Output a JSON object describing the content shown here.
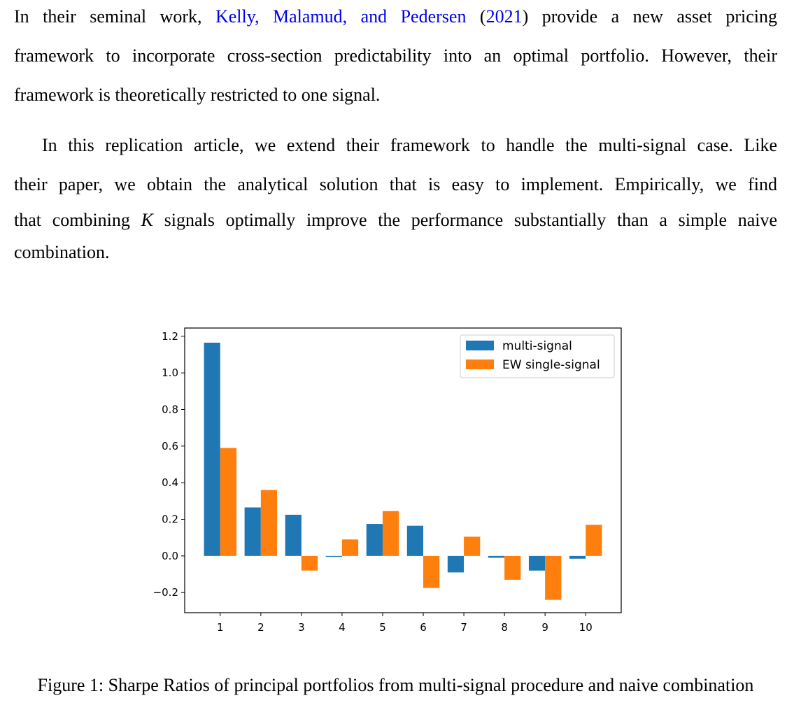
{
  "paragraph1": {
    "line1_pre": "In their seminal work,",
    "line1_cite_authors": "Kelly, Malamud, and Pedersen",
    "line1_cite_open": "(",
    "line1_cite_year": "2021",
    "line1_cite_close": ")",
    "line1_post": "provide a new asset pricing",
    "line2": "framework to incorporate cross-section predictability into an optimal portfolio.  However, their",
    "line3": "framework is theoretically restricted to one signal."
  },
  "paragraph2": {
    "line1": "In this replication article, we extend their framework to handle the multi-signal case.  Like",
    "line2": "their paper, we obtain the analytical solution that is easy to implement.  Empirically, we find",
    "line3_pre": "that combining",
    "line3_var": "K",
    "line3_post": "signals optimally improve the performance substantially than a simple naive",
    "line4": "combination."
  },
  "chart_data": {
    "type": "bar",
    "categories": [
      "1",
      "2",
      "3",
      "4",
      "5",
      "6",
      "7",
      "8",
      "9",
      "10"
    ],
    "series": [
      {
        "name": "multi-signal",
        "color": "#1f77b4",
        "values": [
          1.165,
          0.265,
          0.225,
          -0.005,
          0.175,
          0.165,
          -0.09,
          -0.01,
          -0.08,
          -0.015
        ]
      },
      {
        "name": "EW single-signal",
        "color": "#ff7f0e",
        "values": [
          0.59,
          0.36,
          -0.08,
          0.09,
          0.245,
          -0.175,
          0.105,
          -0.13,
          -0.24,
          0.17
        ]
      }
    ],
    "ylim": [
      -0.31,
      1.245
    ],
    "yticks": [
      -0.2,
      0.0,
      0.2,
      0.4,
      0.6,
      0.8,
      1.0,
      1.2
    ],
    "ytick_labels": [
      "−0.2",
      "0.0",
      "0.2",
      "0.4",
      "0.6",
      "0.8",
      "1.0",
      "1.2"
    ],
    "legend_position": "upper right",
    "grid": false
  },
  "caption": "Figure 1: Sharpe Ratios of principal portfolios from multi-signal procedure and naive combination"
}
